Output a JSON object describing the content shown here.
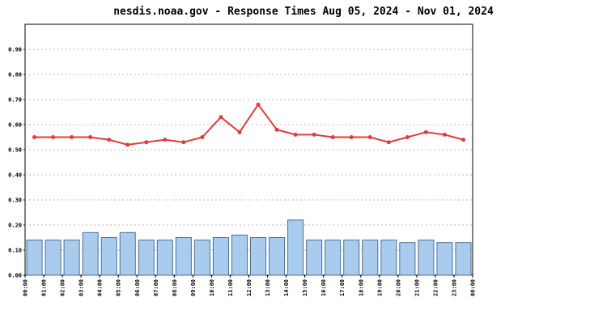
{
  "chart_data": {
    "type": "bar_line",
    "title": "nesdis.noaa.gov - Response Times Aug 05, 2024 - Nov 01, 2024",
    "xticks": [
      "00:00",
      "01:00",
      "02:00",
      "03:00",
      "04:00",
      "05:00",
      "06:00",
      "07:00",
      "08:00",
      "09:00",
      "10:00",
      "11:00",
      "12:00",
      "13:00",
      "14:00",
      "15:00",
      "16:00",
      "17:00",
      "18:00",
      "19:00",
      "20:00",
      "21:00",
      "22:00",
      "23:00",
      "00:00"
    ],
    "series": [
      {
        "type": "bar",
        "color": "#a8cbee",
        "values": [
          0.14,
          0.14,
          0.14,
          0.17,
          0.15,
          0.17,
          0.14,
          0.14,
          0.15,
          0.14,
          0.15,
          0.16,
          0.15,
          0.15,
          0.22,
          0.14,
          0.14,
          0.14,
          0.14,
          0.14,
          0.13,
          0.14,
          0.13,
          0.13
        ]
      },
      {
        "type": "line",
        "color": "#e03c3c",
        "values": [
          0.55,
          0.55,
          0.55,
          0.55,
          0.54,
          0.52,
          0.53,
          0.54,
          0.53,
          0.55,
          0.63,
          0.57,
          0.68,
          0.58,
          0.56,
          0.56,
          0.55,
          0.55,
          0.55,
          0.53,
          0.55,
          0.57,
          0.56,
          0.54
        ]
      }
    ],
    "ylim": [
      0,
      1
    ],
    "yticks": [
      {
        "value": 0,
        "label": "0.00"
      },
      {
        "value": 0.1,
        "label": "0.10"
      },
      {
        "value": 0.2,
        "label": "0.20"
      },
      {
        "value": 0.3,
        "label": "0.30"
      },
      {
        "value": 0.4,
        "label": "0.40"
      },
      {
        "value": 0.5,
        "label": "0.50"
      },
      {
        "value": 0.6,
        "label": "0.60"
      },
      {
        "value": 0.7,
        "label": "0.70"
      },
      {
        "value": 0.8,
        "label": "0.80"
      },
      {
        "value": 0.9,
        "label": "0.90"
      }
    ],
    "grid": true
  }
}
